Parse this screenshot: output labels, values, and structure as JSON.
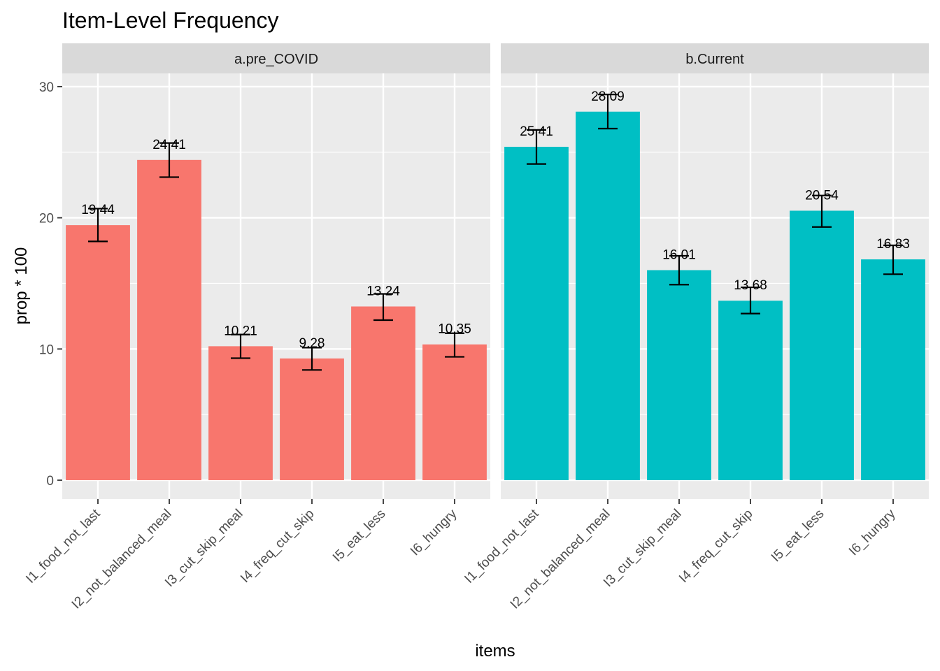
{
  "chart_data": {
    "type": "bar",
    "title": "Item-Level Frequency",
    "xlabel": "items",
    "ylabel": "prop * 100",
    "ylim": [
      0,
      30.5
    ],
    "yticks": [
      0,
      10,
      20,
      30
    ],
    "categories": [
      "I1_food_not_last",
      "I2_not_balanced_meal",
      "I3_cut_skip_meal",
      "I4_freq_cut_skip",
      "I5_eat_less",
      "I6_hungry"
    ],
    "legend": "none",
    "grid": true,
    "facets": [
      {
        "label": "a.pre_COVID",
        "color": "#F8766D",
        "values": [
          19.44,
          24.41,
          10.21,
          9.28,
          13.24,
          10.35
        ],
        "value_labels": [
          "19.44",
          "24.41",
          "10.21",
          "9.28",
          "13.24",
          "10.35"
        ],
        "err_low": [
          18.2,
          23.1,
          9.3,
          8.4,
          12.2,
          9.4
        ],
        "err_high": [
          20.7,
          25.7,
          11.1,
          10.1,
          14.2,
          11.2
        ]
      },
      {
        "label": "b.Current",
        "color": "#00BFC4",
        "values": [
          25.41,
          28.09,
          16.01,
          13.68,
          20.54,
          16.83
        ],
        "value_labels": [
          "25.41",
          "28.09",
          "16.01",
          "13.68",
          "20.54",
          "16.83"
        ],
        "err_low": [
          24.1,
          26.8,
          14.9,
          12.7,
          19.3,
          15.7
        ],
        "err_high": [
          26.7,
          29.4,
          17.1,
          14.7,
          21.7,
          17.9
        ]
      }
    ]
  }
}
